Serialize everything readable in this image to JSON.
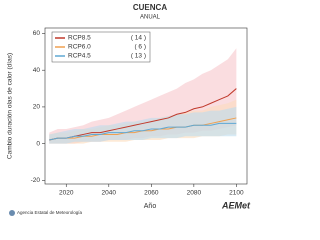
{
  "chart_data": {
    "type": "line",
    "title": "CUENCA",
    "subtitle": "ANUAL",
    "y_label": "Cambio duración olas de calor (días)",
    "x_label": "Año",
    "footer": "Agencia Estatal de Meteorología",
    "logo": "AEMet",
    "xlim": [
      2010,
      2105
    ],
    "xticks": [
      2020,
      2040,
      2060,
      2080,
      2100
    ],
    "ylim": [
      -22,
      63
    ],
    "yticks": [
      -20,
      0,
      20,
      40,
      60
    ],
    "x": [
      2012,
      2016,
      2020,
      2024,
      2028,
      2032,
      2036,
      2040,
      2044,
      2048,
      2052,
      2056,
      2060,
      2064,
      2068,
      2072,
      2076,
      2080,
      2084,
      2088,
      2092,
      2096,
      2100
    ],
    "series": [
      {
        "name": "RCP8.5",
        "legend_note": "( 14 )",
        "color": "#c0392b",
        "band_color": "#f6c6cb",
        "values": [
          2,
          3,
          3,
          4,
          5,
          6,
          6,
          7,
          8,
          9,
          10,
          11,
          12,
          13,
          14,
          16,
          17,
          19,
          20,
          22,
          24,
          26,
          30
        ],
        "high": [
          6,
          8,
          8,
          9,
          10,
          12,
          13,
          14,
          16,
          18,
          20,
          22,
          24,
          26,
          28,
          30,
          33,
          35,
          38,
          40,
          43,
          46,
          52
        ],
        "low": [
          0,
          0,
          0,
          0,
          1,
          1,
          1,
          2,
          2,
          2,
          3,
          3,
          4,
          4,
          5,
          5,
          6,
          6,
          7,
          7,
          8,
          9,
          10
        ]
      },
      {
        "name": "RCP6.0",
        "legend_note": "(  6 )",
        "color": "#f0a050",
        "band_color": "#fbdcbc",
        "values": [
          2,
          3,
          3,
          3,
          4,
          4,
          5,
          5,
          5,
          6,
          6,
          7,
          7,
          8,
          8,
          9,
          9,
          10,
          10,
          11,
          12,
          13,
          14
        ],
        "high": [
          5,
          6,
          6,
          7,
          8,
          8,
          9,
          10,
          10,
          11,
          12,
          12,
          13,
          14,
          15,
          16,
          17,
          18,
          18,
          20,
          21,
          22,
          24
        ],
        "low": [
          0,
          0,
          0,
          0,
          0,
          1,
          1,
          1,
          1,
          1,
          2,
          2,
          2,
          2,
          3,
          3,
          3,
          3,
          4,
          4,
          4,
          5,
          5
        ]
      },
      {
        "name": "RCP4.5",
        "legend_note": "( 13 )",
        "color": "#5fa8d3",
        "band_color": "#bcdcef",
        "values": [
          2,
          3,
          3,
          4,
          4,
          5,
          5,
          6,
          6,
          6,
          7,
          7,
          8,
          8,
          9,
          9,
          9,
          10,
          10,
          10,
          11,
          11,
          11
        ],
        "high": [
          5,
          6,
          7,
          8,
          8,
          9,
          10,
          10,
          11,
          12,
          12,
          13,
          14,
          14,
          15,
          16,
          16,
          17,
          17,
          18,
          18,
          19,
          20
        ],
        "low": [
          0,
          0,
          0,
          1,
          1,
          1,
          1,
          2,
          2,
          2,
          2,
          2,
          3,
          3,
          3,
          3,
          4,
          4,
          4,
          4,
          4,
          4,
          4
        ]
      }
    ]
  }
}
